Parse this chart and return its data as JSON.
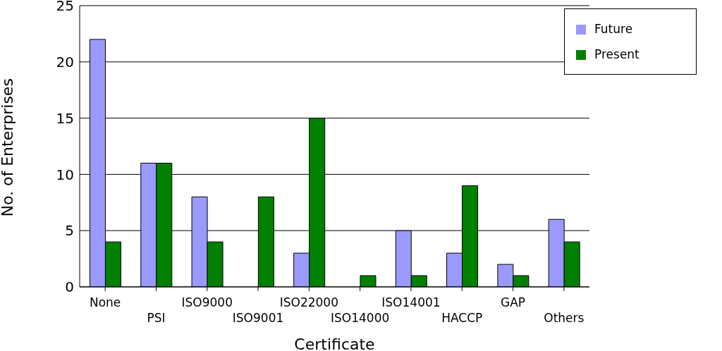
{
  "chart_data": {
    "type": "bar",
    "xlabel": "Certificate",
    "ylabel": "No. of Enterprises",
    "categories": [
      "None",
      "PSI",
      "ISO9000",
      "ISO9001",
      "ISO22000",
      "ISO14000",
      "ISO14001",
      "HACCP",
      "GAP",
      "Others"
    ],
    "series": [
      {
        "name": "Future",
        "color": "#9999ff",
        "values": [
          22,
          11,
          8,
          0,
          3,
          0,
          5,
          3,
          2,
          6
        ]
      },
      {
        "name": "Present",
        "color": "#008000",
        "values": [
          4,
          11,
          4,
          8,
          15,
          1,
          1,
          9,
          1,
          4
        ]
      }
    ],
    "ylim": [
      0,
      25
    ],
    "yticks": [
      0,
      5,
      10,
      15,
      20,
      25
    ],
    "grid": "y",
    "legend": "top right"
  }
}
